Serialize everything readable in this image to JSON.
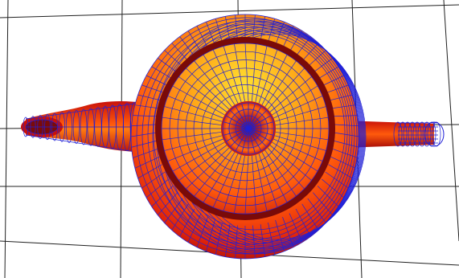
{
  "scene": {
    "background": "#ffffff",
    "floor_grid_color": "#202020",
    "wireframe_color": "#1f1fd6",
    "shading": {
      "highlight": "#ffd21a",
      "mid": "#ff7a10",
      "shadow": "#c8100a",
      "dark": "#6e0a08"
    },
    "objects": [
      "teapot-body",
      "teapot-lid",
      "teapot-spout",
      "teapot-handle"
    ]
  }
}
